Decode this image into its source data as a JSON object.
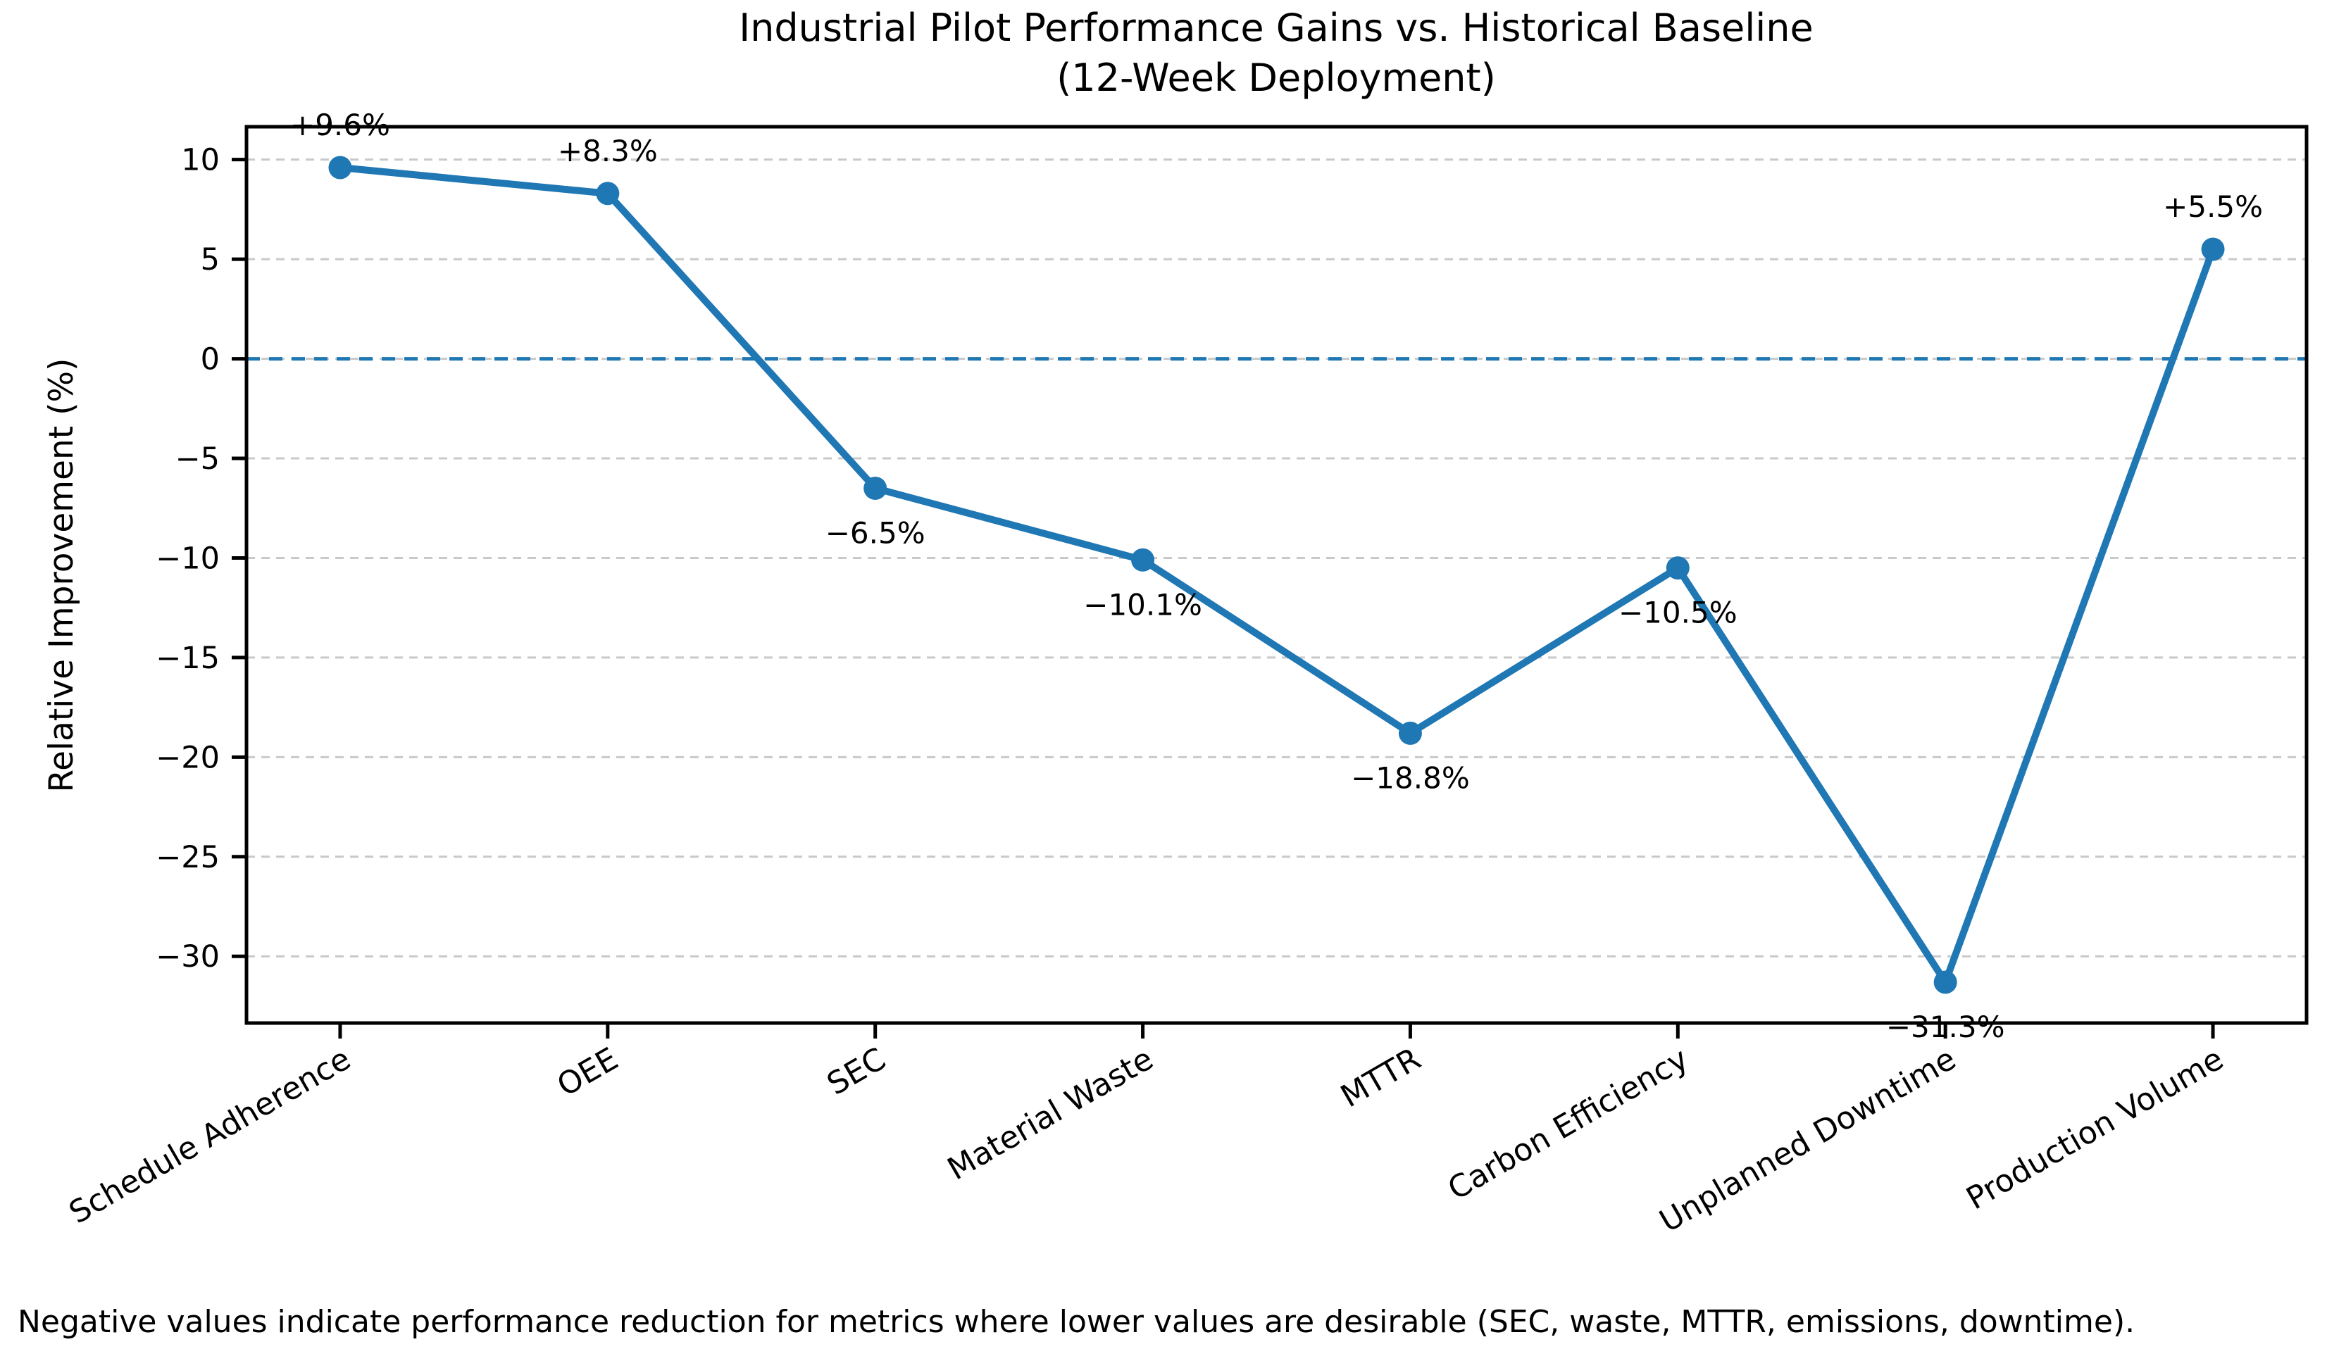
{
  "chart_data": {
    "type": "line",
    "title": "Industrial Pilot Performance Gains vs. Historical Baseline",
    "subtitle": "(12-Week Deployment)",
    "ylabel": "Relative Improvement (%)",
    "xlabel": "",
    "categories": [
      "Schedule Adherence",
      "OEE",
      "SEC",
      "Material Waste",
      "MTTR",
      "Carbon Efficiency",
      "Unplanned Downtime",
      "Production Volume"
    ],
    "series": [
      {
        "name": "Relative Improvement",
        "values": [
          9.6,
          8.3,
          -6.5,
          -10.1,
          -18.8,
          -10.5,
          -31.3,
          5.5
        ],
        "point_labels": [
          "+9.6%",
          "+8.3%",
          "−6.5%",
          "−10.1%",
          "−18.8%",
          "−10.5%",
          "−31.3%",
          "+5.5%"
        ],
        "label_side": [
          "above",
          "above",
          "below",
          "below",
          "below",
          "below",
          "below",
          "above"
        ]
      }
    ],
    "yticks": [
      10,
      5,
      0,
      -5,
      -10,
      -15,
      -20,
      -25,
      -30
    ],
    "ytick_labels": [
      "10",
      "5",
      "0",
      "−5",
      "−10",
      "−15",
      "−20",
      "−25",
      "−30"
    ],
    "ylim": [
      -33.35,
      11.65
    ],
    "baseline_value": 0,
    "grid": "horizontal dashed",
    "legend": "none",
    "line_color": "#1f77b4",
    "baseline_color": "#1f77b4",
    "grid_color": "#c9c9c9",
    "spine_color": "#000000",
    "footnote": "Negative values indicate performance reduction for metrics where lower values are desirable (SEC, waste, MTTR, emissions, downtime)."
  }
}
